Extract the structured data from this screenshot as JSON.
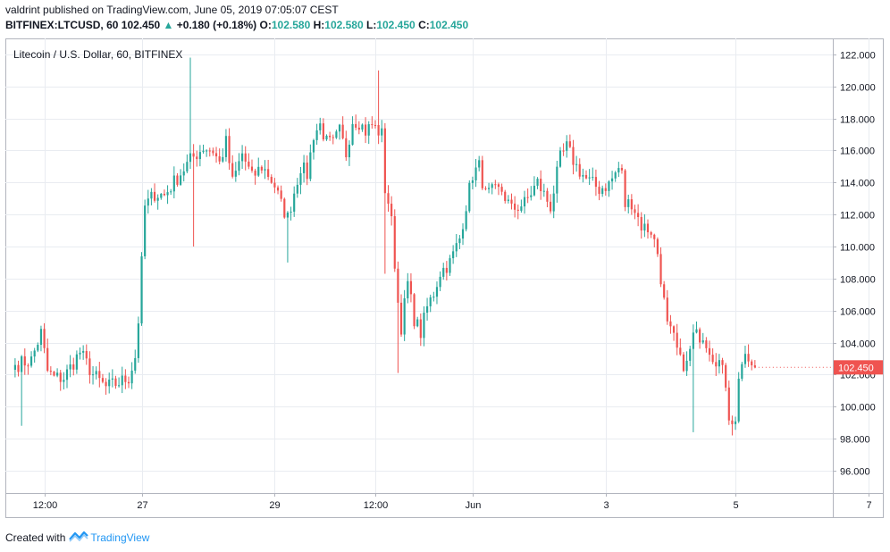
{
  "header": {
    "author": "valdrint",
    "published": "published on TradingView.com, June 05, 2019 07:05:07 CEST",
    "symbol": "BITFINEX:LTCUSD, 60",
    "last": "102.450",
    "arrow": "▲",
    "change": "+0.180 (+0.18%)",
    "o_label": "O:",
    "o_value": "102.580",
    "h_label": "H:",
    "h_value": "102.580",
    "l_label": "L:",
    "l_value": "102.450",
    "c_label": "C:",
    "c_value": "102.450"
  },
  "footer": {
    "created_with": "Created with",
    "brand": "TradingView"
  },
  "colors": {
    "up": "#26a69a",
    "down": "#ef5350",
    "grid": "#e9ecf1",
    "axis": "#9aa0ab",
    "price_tag": "#ef5350"
  },
  "chart_data": {
    "type": "candlestick",
    "title": "Litecoin / U.S. Dollar, 60, BITFINEX",
    "ylim": [
      94.6,
      123.0
    ],
    "y_ticks": [
      96,
      98,
      100,
      102,
      104,
      106,
      108,
      110,
      112,
      114,
      116,
      118,
      120,
      122
    ],
    "y_tick_labels": [
      "96.000",
      "98.000",
      "100.000",
      "102.000",
      "104.000",
      "106.000",
      "108.000",
      "110.000",
      "112.000",
      "114.000",
      "116.000",
      "118.000",
      "120.000",
      "122.000"
    ],
    "x_range": [
      -3,
      252
    ],
    "x_ticks": [
      {
        "label": "12:00",
        "x": 9
      },
      {
        "label": "27",
        "x": 39
      },
      {
        "label": "29",
        "x": 80
      },
      {
        "label": "12:00",
        "x": 111
      },
      {
        "label": "Jun",
        "x": 141
      },
      {
        "label": "3",
        "x": 182
      },
      {
        "label": "5",
        "x": 222
      },
      {
        "label": "7",
        "x": 263
      }
    ],
    "last_price": 102.45,
    "last_price_label": "102.450",
    "grid": true,
    "anchors": [
      [
        0,
        102.6
      ],
      [
        5,
        102.9
      ],
      [
        8,
        104.6
      ],
      [
        10,
        102.2
      ],
      [
        12,
        101.8
      ],
      [
        15,
        101.8
      ],
      [
        20,
        103.4
      ],
      [
        24,
        102.0
      ],
      [
        28,
        101.2
      ],
      [
        32,
        101.5
      ],
      [
        35,
        101.8
      ],
      [
        37,
        103.1
      ],
      [
        38,
        105.4
      ],
      [
        40,
        112.5
      ],
      [
        43,
        113.3
      ],
      [
        46,
        113.2
      ],
      [
        50,
        114.3
      ],
      [
        54,
        115.4
      ],
      [
        58,
        116.2
      ],
      [
        61,
        116.0
      ],
      [
        63,
        115.2
      ],
      [
        65,
        116.5
      ],
      [
        67,
        114.0
      ],
      [
        70,
        115.8
      ],
      [
        73,
        114.3
      ],
      [
        76,
        115.0
      ],
      [
        78,
        114.5
      ],
      [
        80,
        113.8
      ],
      [
        82,
        112.6
      ],
      [
        84,
        111.8
      ],
      [
        86,
        113.4
      ],
      [
        88,
        115.0
      ],
      [
        90,
        114.5
      ],
      [
        92,
        117.0
      ],
      [
        94,
        117.6
      ],
      [
        96,
        116.5
      ],
      [
        98,
        116.4
      ],
      [
        100,
        117.2
      ],
      [
        102,
        115.8
      ],
      [
        104,
        117.9
      ],
      [
        106,
        117.8
      ],
      [
        108,
        117.2
      ],
      [
        110,
        117.6
      ],
      [
        112,
        117.2
      ],
      [
        113,
        117.0
      ],
      [
        114,
        113.6
      ],
      [
        115,
        112.8
      ],
      [
        116,
        111.5
      ],
      [
        118,
        106.5
      ],
      [
        119,
        105.0
      ],
      [
        121,
        107.7
      ],
      [
        123,
        105.5
      ],
      [
        125,
        104.6
      ],
      [
        127,
        106.2
      ],
      [
        129,
        107.1
      ],
      [
        131,
        108.4
      ],
      [
        134,
        109.0
      ],
      [
        137,
        110.5
      ],
      [
        139,
        112.6
      ],
      [
        141,
        114.5
      ],
      [
        143,
        115.0
      ],
      [
        145,
        113.2
      ],
      [
        147,
        113.4
      ],
      [
        150,
        113.5
      ],
      [
        153,
        112.3
      ],
      [
        157,
        112.7
      ],
      [
        161,
        114.0
      ],
      [
        165,
        112.5
      ],
      [
        168,
        115.5
      ],
      [
        170,
        116.2
      ],
      [
        173,
        115.0
      ],
      [
        176,
        114.2
      ],
      [
        180,
        113.6
      ],
      [
        183,
        113.9
      ],
      [
        186,
        114.9
      ],
      [
        187,
        114.5
      ],
      [
        188,
        112.6
      ],
      [
        190,
        112.8
      ],
      [
        193,
        111.3
      ],
      [
        196,
        111.0
      ],
      [
        198,
        109.6
      ],
      [
        201,
        105.0
      ],
      [
        203,
        104.2
      ],
      [
        205,
        102.8
      ],
      [
        207,
        102.6
      ],
      [
        209,
        104.4
      ],
      [
        212,
        104.5
      ],
      [
        215,
        103.2
      ],
      [
        217,
        102.8
      ],
      [
        219,
        101.5
      ],
      [
        220,
        99.5
      ],
      [
        222,
        98.9
      ],
      [
        223,
        102.0
      ],
      [
        224,
        102.7
      ],
      [
        226,
        102.9
      ],
      [
        227,
        102.58
      ],
      [
        228,
        102.45
      ]
    ],
    "spikes": [
      {
        "x": 54,
        "high": 121.8
      },
      {
        "x": 55,
        "low": 110.0
      },
      {
        "x": 2,
        "low": 98.8
      },
      {
        "x": 84,
        "low": 109.0
      },
      {
        "x": 112,
        "high": 121.0
      },
      {
        "x": 114,
        "low": 108.3
      },
      {
        "x": 118,
        "low": 102.1
      },
      {
        "x": 209,
        "low": 98.4
      },
      {
        "x": 221,
        "low": 98.2
      }
    ]
  }
}
